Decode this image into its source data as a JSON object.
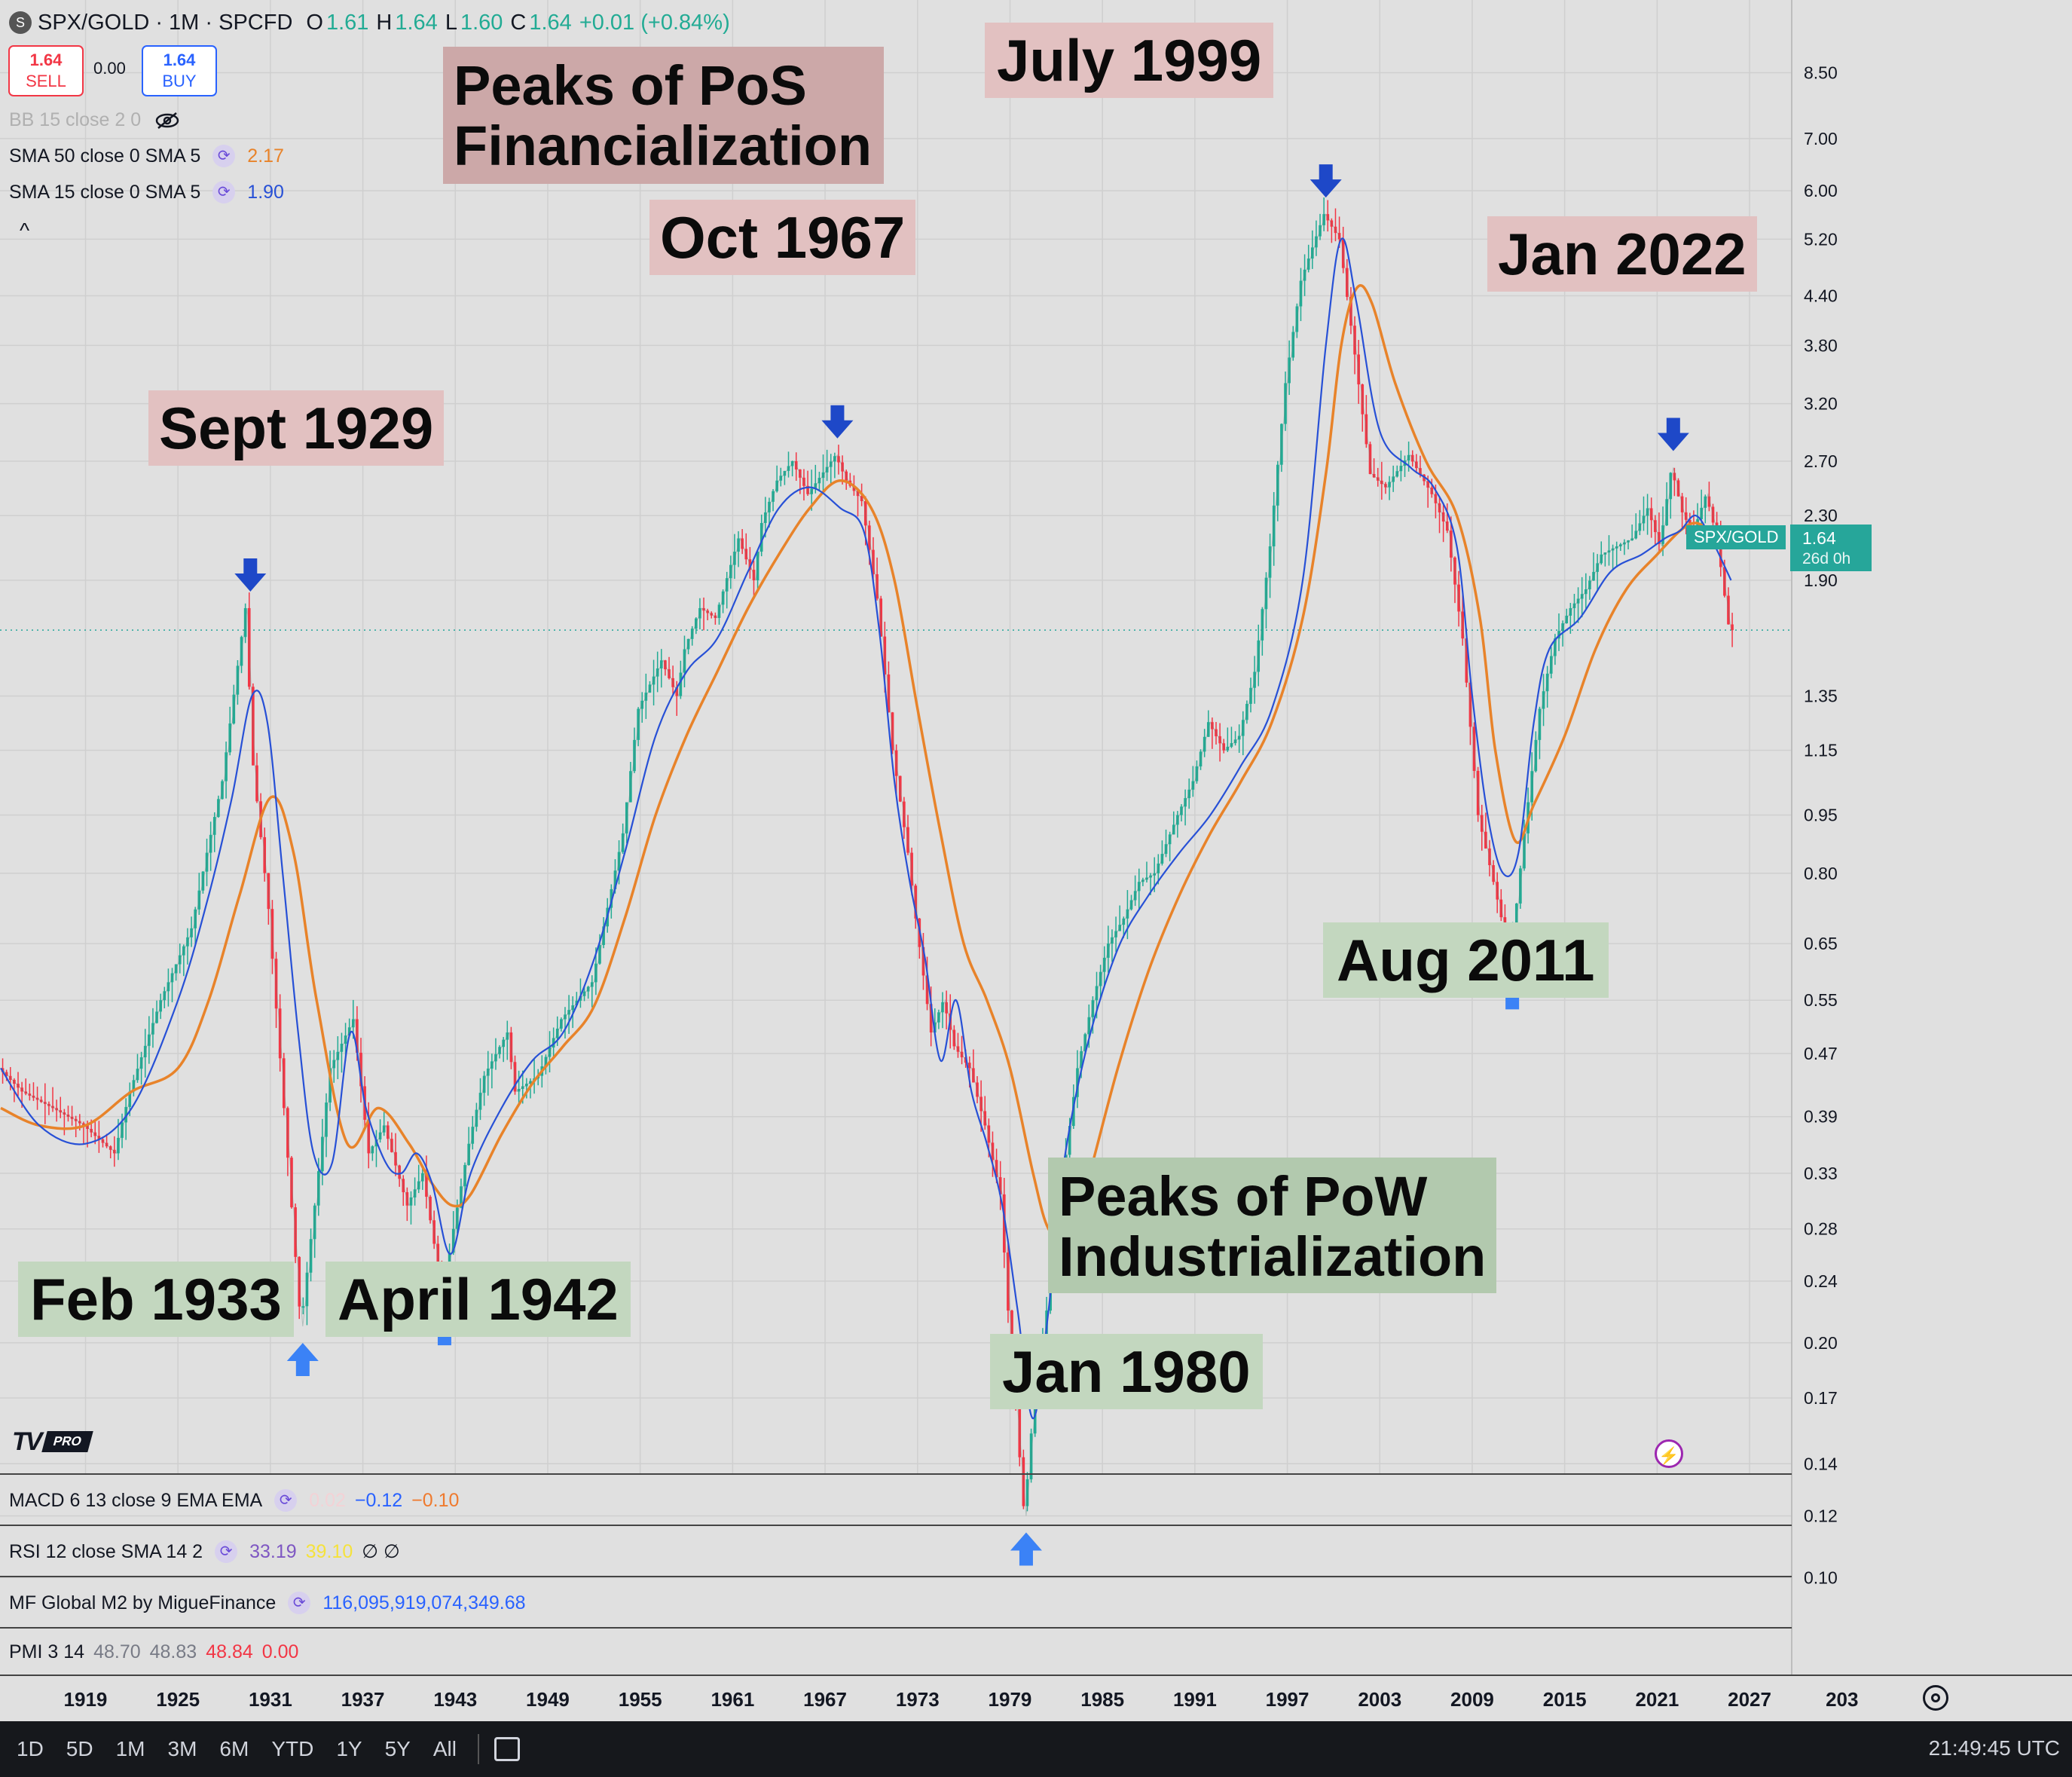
{
  "header": {
    "symbol_icon": "S",
    "title": "SPX/GOLD · 1M · SPCFD",
    "o_label": "O",
    "o_value": "1.61",
    "h_label": "H",
    "h_value": "1.64",
    "l_label": "L",
    "l_value": "1.60",
    "c_label": "C",
    "c_value": "1.64",
    "change": "+0.01 (+0.84%)"
  },
  "trade": {
    "sell_price": "1.64",
    "sell_label": "SELL",
    "spread": "0.00",
    "buy_price": "1.64",
    "buy_label": "BUY"
  },
  "indicators": {
    "bb": "BB 15 close 2 0",
    "sma50_label": "SMA 50 close 0 SMA 5",
    "sma50_value": "2.17",
    "sma15_label": "SMA 15 close 0 SMA 5",
    "sma15_value": "1.90",
    "collapse_icon": "chevron-up-icon",
    "eye_icon": "eye-off-icon"
  },
  "annotations": {
    "pos_title_1": "Peaks of PoS",
    "pos_title_2": "Financialization",
    "pow_title_1": "Peaks of PoW",
    "pow_title_2": "Industrialization",
    "peak_1929": "Sept 1929",
    "peak_1967": "Oct 1967",
    "peak_1999": "July 1999",
    "peak_2022": "Jan 2022",
    "trough_1933": "Feb 1933",
    "trough_1942": "April 1942",
    "trough_1980": "Jan 1980",
    "trough_2011": "Aug 2011"
  },
  "price_axis": {
    "labels": [
      "8.50",
      "7.00",
      "6.00",
      "5.20",
      "4.40",
      "3.80",
      "3.20",
      "2.70",
      "2.30",
      "1.90",
      "1.35",
      "1.15",
      "0.95",
      "0.80",
      "0.65",
      "0.55",
      "0.47",
      "0.39",
      "0.33",
      "0.28",
      "0.24",
      "0.20",
      "0.17",
      "0.14",
      "0.12",
      "0.10"
    ],
    "last_symbol": "SPX/GOLD",
    "last_value": "1.64",
    "countdown": "26d 0h"
  },
  "time_axis": {
    "labels": [
      "1919",
      "1925",
      "1931",
      "1937",
      "1943",
      "1949",
      "1955",
      "1961",
      "1967",
      "1973",
      "1979",
      "1985",
      "1991",
      "1997",
      "2003",
      "2009",
      "2015",
      "2021",
      "2027",
      "203"
    ]
  },
  "panes": {
    "macd_label": "MACD 6 13 close 9 EMA EMA",
    "macd_hist": "0.02",
    "macd_v1": "−0.12",
    "macd_v2": "−0.10",
    "rsi_label": "RSI 12 close SMA 14 2",
    "rsi_v1": "33.19",
    "rsi_v2": "39.10",
    "rsi_na": "∅ ∅",
    "m2_label": "MF Global M2 by MigueFinance",
    "m2_value": "116,095,919,074,349.68",
    "pmi_label": "PMI 3 14",
    "pmi_v1": "48.70",
    "pmi_v2": "48.83",
    "pmi_v3": "48.84",
    "pmi_v4": "0.00"
  },
  "bottom_bar": {
    "timeframes": [
      "1D",
      "5D",
      "1M",
      "3M",
      "6M",
      "YTD",
      "1Y",
      "5Y",
      "All"
    ],
    "clock": "21:49:45 UTC",
    "calendar_icon": "calendar-icon"
  },
  "logo": {
    "mark": "TV",
    "badge": "PRO"
  },
  "colors": {
    "background": "#e0e0e0",
    "up": "#22ab94",
    "down": "#f23645",
    "sma15": "#2750d6",
    "sma50": "#e8832a",
    "peak_arrow": "#1e48c8",
    "trough_arrow": "#3b82f6",
    "peak_box": "#e2c1c1",
    "trough_box": "#c3d7bf"
  },
  "chart_data": {
    "type": "line",
    "scale": "log",
    "x_unit": "year",
    "ylim": [
      0.095,
      8.6
    ],
    "xlim": [
      1913.5,
      2034.2
    ],
    "series": [
      {
        "name": "SPX/GOLD",
        "x": [
          1913.5,
          1915,
          1917,
          1919,
          1921,
          1922,
          1924,
          1926,
          1927,
          1928,
          1929.5,
          1930,
          1931,
          1932,
          1933.1,
          1934,
          1935,
          1936.5,
          1937.5,
          1938.5,
          1940,
          1941,
          1942.3,
          1943,
          1944,
          1945,
          1946.5,
          1947,
          1948.5,
          1950,
          1952,
          1954,
          1955,
          1956.5,
          1957.5,
          1958,
          1959,
          1960,
          1961.5,
          1962.5,
          1963,
          1964,
          1965,
          1966,
          1967.8,
          1968.5,
          1969.5,
          1970.5,
          1971.5,
          1972.5,
          1973,
          1974,
          1974.8,
          1975.5,
          1976.5,
          1977.5,
          1978.5,
          1979,
          1980.05,
          1980.8,
          1981.5,
          1982.5,
          1983.5,
          1984.5,
          1985.5,
          1986.5,
          1987.5,
          1988.5,
          1990,
          1991,
          1992,
          1993,
          1994,
          1995,
          1996,
          1997,
          1998,
          1999.5,
          2000.5,
          2001.5,
          2002.5,
          2003.5,
          2005,
          2006.5,
          2007.5,
          2008.5,
          2009.5,
          2010.5,
          2011.6,
          2012.5,
          2013.5,
          2014.5,
          2015.5,
          2016.5,
          2017.5,
          2018.5,
          2019.5,
          2020.5,
          2021.3,
          2022.05,
          2022.8,
          2023.5,
          2024.3,
          2025,
          2025.8
        ],
        "y": [
          0.45,
          0.42,
          0.4,
          0.38,
          0.35,
          0.42,
          0.55,
          0.68,
          0.85,
          1.05,
          1.75,
          1.1,
          0.72,
          0.4,
          0.21,
          0.3,
          0.45,
          0.52,
          0.35,
          0.38,
          0.3,
          0.33,
          0.23,
          0.28,
          0.36,
          0.44,
          0.5,
          0.42,
          0.44,
          0.52,
          0.58,
          0.9,
          1.3,
          1.5,
          1.35,
          1.55,
          1.75,
          1.7,
          2.15,
          1.9,
          2.25,
          2.55,
          2.7,
          2.45,
          2.75,
          2.55,
          2.4,
          1.8,
          1.15,
          0.85,
          0.7,
          0.5,
          0.55,
          0.48,
          0.45,
          0.38,
          0.31,
          0.22,
          0.12,
          0.18,
          0.22,
          0.32,
          0.45,
          0.55,
          0.65,
          0.7,
          0.78,
          0.8,
          0.95,
          1.05,
          1.25,
          1.15,
          1.2,
          1.45,
          2.1,
          3.4,
          4.6,
          5.6,
          5.2,
          3.7,
          2.6,
          2.5,
          2.75,
          2.45,
          2.2,
          1.6,
          0.95,
          0.78,
          0.62,
          0.9,
          1.3,
          1.6,
          1.75,
          1.85,
          2.05,
          2.1,
          2.15,
          2.35,
          2.1,
          2.65,
          2.3,
          2.2,
          2.45,
          2.15,
          1.64
        ]
      },
      {
        "name": "SMA 15 close 0 SMA 5",
        "x": [
          1913.5,
          1916,
          1919,
          1922,
          1925,
          1927,
          1928.5,
          1929.8,
          1930.8,
          1931.8,
          1932.8,
          1933.8,
          1935,
          1936.2,
          1937.2,
          1938.5,
          1939.5,
          1940.5,
          1941.5,
          1942.7,
          1944,
          1946,
          1948,
          1950,
          1952,
          1954,
          1956,
          1958,
          1960,
          1962,
          1964,
          1966,
          1968,
          1969.5,
          1970.5,
          1971.5,
          1972.5,
          1973.5,
          1974.5,
          1975.5,
          1976.5,
          1977.5,
          1978.5,
          1979.5,
          1980.5,
          1981.5,
          1982.5,
          1984,
          1986,
          1988,
          1990,
          1992,
          1994,
          1996,
          1998,
          1999.5,
          2000.5,
          2001.5,
          2003,
          2005,
          2006.5,
          2008,
          2009,
          2010,
          2011,
          2012,
          2013,
          2014,
          2016,
          2018,
          2020,
          2021.5,
          2022.5,
          2023.5,
          2024.5,
          2025.8
        ],
        "y": [
          0.45,
          0.38,
          0.36,
          0.4,
          0.55,
          0.75,
          1.0,
          1.35,
          1.25,
          0.8,
          0.5,
          0.35,
          0.34,
          0.5,
          0.4,
          0.34,
          0.33,
          0.35,
          0.32,
          0.26,
          0.33,
          0.4,
          0.46,
          0.5,
          0.62,
          0.85,
          1.2,
          1.45,
          1.6,
          1.95,
          2.35,
          2.5,
          2.35,
          2.2,
          1.65,
          1.05,
          0.78,
          0.62,
          0.46,
          0.55,
          0.42,
          0.36,
          0.3,
          0.22,
          0.16,
          0.22,
          0.34,
          0.48,
          0.64,
          0.75,
          0.85,
          0.95,
          1.1,
          1.3,
          1.9,
          3.8,
          5.2,
          4.3,
          2.95,
          2.65,
          2.5,
          2.1,
          1.35,
          0.95,
          0.8,
          0.85,
          1.25,
          1.55,
          1.7,
          1.95,
          2.05,
          2.15,
          2.2,
          2.3,
          2.15,
          1.9
        ]
      },
      {
        "name": "SMA 50 close 0 SMA 5",
        "x": [
          1913.5,
          1916,
          1919,
          1922,
          1925,
          1927,
          1929,
          1931,
          1932.5,
          1934,
          1936,
          1938,
          1940,
          1941.5,
          1942.8,
          1944,
          1946,
          1948,
          1950,
          1952,
          1954,
          1956,
          1958,
          1960,
          1962,
          1964,
          1966,
          1968,
          1970,
          1971.5,
          1973,
          1974.5,
          1976,
          1977.5,
          1979,
          1980.5,
          1981.5,
          1982.8,
          1984,
          1986,
          1988,
          1990,
          1992,
          1994,
          1996,
          1998,
          1999.5,
          2000.5,
          2001.5,
          2002.5,
          2004,
          2006,
          2008,
          2009.5,
          2010.5,
          2011.8,
          2013,
          2015,
          2017,
          2019,
          2021,
          2022.5,
          2023.5,
          2024.5,
          2025.8
        ],
        "y": [
          0.4,
          0.38,
          0.38,
          0.42,
          0.45,
          0.55,
          0.75,
          1.0,
          0.85,
          0.55,
          0.36,
          0.4,
          0.36,
          0.32,
          0.3,
          0.31,
          0.37,
          0.43,
          0.48,
          0.54,
          0.7,
          0.95,
          1.2,
          1.45,
          1.75,
          2.05,
          2.35,
          2.55,
          2.35,
          1.9,
          1.3,
          0.9,
          0.65,
          0.55,
          0.45,
          0.33,
          0.28,
          0.27,
          0.32,
          0.45,
          0.6,
          0.75,
          0.9,
          1.05,
          1.25,
          1.7,
          2.6,
          3.8,
          4.5,
          4.3,
          3.4,
          2.7,
          2.3,
          1.7,
          1.15,
          0.88,
          0.98,
          1.2,
          1.55,
          1.85,
          2.05,
          2.2,
          2.25,
          2.2,
          2.17
        ]
      }
    ],
    "markers": [
      {
        "type": "peak",
        "label": "Sept 1929",
        "x": 1929.7,
        "y": 1.75
      },
      {
        "type": "peak",
        "label": "Oct 1967",
        "x": 1967.8,
        "y": 2.75
      },
      {
        "type": "peak",
        "label": "July 1999",
        "x": 1999.5,
        "y": 5.6
      },
      {
        "type": "peak",
        "label": "Jan 2022",
        "x": 2022.05,
        "y": 2.65
      },
      {
        "type": "trough",
        "label": "Feb 1933",
        "x": 1933.1,
        "y": 0.21
      },
      {
        "type": "trough",
        "label": "April 1942",
        "x": 1942.3,
        "y": 0.23
      },
      {
        "type": "trough",
        "label": "Jan 1980",
        "x": 1980.05,
        "y": 0.12
      },
      {
        "type": "trough",
        "label": "Aug 2011",
        "x": 2011.6,
        "y": 0.62
      }
    ],
    "last_value": 1.64,
    "grid": true
  }
}
